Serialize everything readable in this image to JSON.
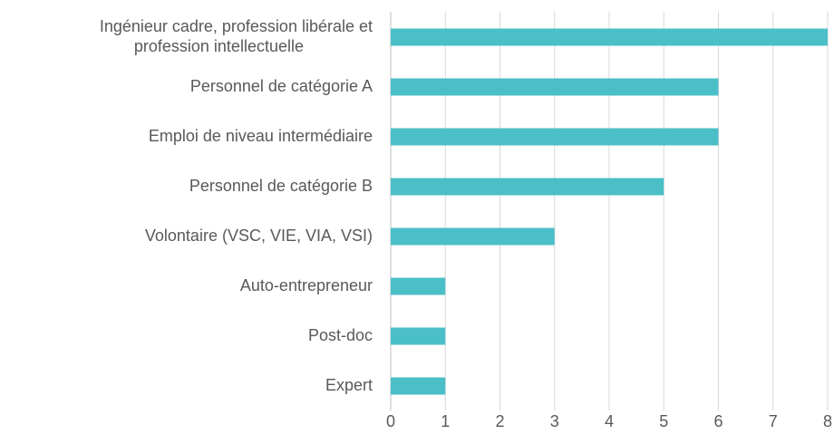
{
  "chart_data": {
    "type": "barh",
    "categories": [
      "Ingénieur cadre, profession libérale et profession intellectuelle",
      "Personnel de catégorie A",
      "Emploi de niveau intermédiaire",
      "Personnel de catégorie B",
      "Volontaire (VSC, VIE, VIA, VSI)",
      "Auto-entrepreneur",
      "Post-doc",
      "Expert"
    ],
    "values": [
      8,
      6,
      6,
      5,
      3,
      1,
      1,
      1
    ],
    "color": "#4bbfc7",
    "xlim": [
      0,
      8
    ],
    "xticks": [
      0,
      1,
      2,
      3,
      4,
      5,
      6,
      7,
      8
    ],
    "grid": true
  }
}
